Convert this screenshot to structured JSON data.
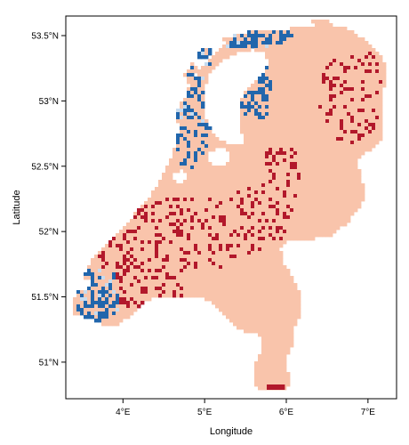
{
  "chart_data": {
    "type": "heatmap",
    "title": "",
    "xlabel": "Longitude",
    "ylabel": "Latitude",
    "xlim": [
      3.3,
      7.35
    ],
    "ylim": [
      50.72,
      53.65
    ],
    "x_ticks": [
      {
        "value": 4,
        "label": "4°E"
      },
      {
        "value": 5,
        "label": "5°E"
      },
      {
        "value": 6,
        "label": "6°E"
      },
      {
        "value": 7,
        "label": "7°E"
      }
    ],
    "y_ticks": [
      {
        "value": 51,
        "label": "51°N"
      },
      {
        "value": 51.5,
        "label": "51.5°N"
      },
      {
        "value": 52,
        "label": "52°N"
      },
      {
        "value": 52.5,
        "label": "52.5°N"
      },
      {
        "value": 53,
        "label": "53°N"
      },
      {
        "value": 53.5,
        "label": "53.5°N"
      }
    ],
    "grid": false,
    "legend": "none",
    "colors": {
      "land": "#f9c4ab",
      "high": "#b2182b",
      "low": "#2166ac",
      "light_low": "#c6dbef",
      "frame": "#000000"
    }
  }
}
